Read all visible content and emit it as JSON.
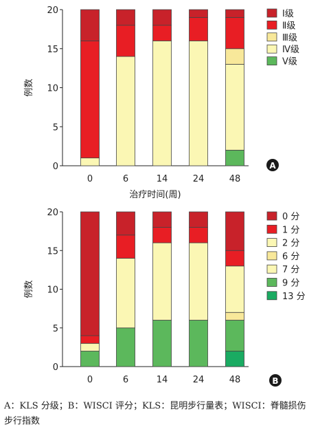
{
  "chart_data": [
    {
      "panel_label": "A",
      "type": "bar",
      "stacked": true,
      "categories": [
        "0",
        "6",
        "14",
        "24",
        "48"
      ],
      "xlabel": "治疗时间(周)",
      "ylabel": "例数",
      "ylim": [
        0,
        20
      ],
      "yticks": [
        "0",
        "5",
        "10",
        "15",
        "20"
      ],
      "grid": false,
      "legend_position": "right",
      "series": [
        {
          "name": "Ⅴ级",
          "color": "#5cb85c",
          "values": [
            0,
            0,
            0,
            0,
            2
          ]
        },
        {
          "name": "Ⅳ级",
          "color": "#fbf7b4",
          "values": [
            1,
            14,
            16,
            16,
            11
          ]
        },
        {
          "name": "Ⅲ级",
          "color": "#f8e89a",
          "values": [
            0,
            0,
            0,
            0,
            2
          ]
        },
        {
          "name": "Ⅱ级",
          "color": "#e81e24",
          "values": [
            15,
            4,
            2,
            3,
            4
          ]
        },
        {
          "name": "Ⅰ级",
          "color": "#c8222a",
          "values": [
            4,
            2,
            2,
            1,
            1
          ]
        }
      ],
      "legend_order": [
        "Ⅰ级",
        "Ⅱ级",
        "Ⅲ级",
        "Ⅳ级",
        "Ⅴ级"
      ]
    },
    {
      "panel_label": "B",
      "type": "bar",
      "stacked": true,
      "categories": [
        "0",
        "6",
        "14",
        "24",
        "48"
      ],
      "xlabel": "",
      "ylabel": "例数",
      "ylim": [
        0,
        20
      ],
      "yticks": [
        "0",
        "5",
        "10",
        "15",
        "20"
      ],
      "grid": false,
      "legend_position": "right",
      "series": [
        {
          "name": "13 分",
          "color": "#1aab62",
          "values": [
            0,
            0,
            0,
            0,
            2
          ]
        },
        {
          "name": "9 分",
          "color": "#5cb85c",
          "values": [
            2,
            5,
            6,
            6,
            4
          ]
        },
        {
          "name": "7 分",
          "color": "#fbf7b4",
          "values": [
            0,
            0,
            0,
            0,
            0
          ]
        },
        {
          "name": "6 分",
          "color": "#f8e89a",
          "values": [
            0,
            0,
            0,
            0,
            1
          ]
        },
        {
          "name": "2 分",
          "color": "#fbf7b4",
          "values": [
            1,
            9,
            10,
            10,
            6
          ]
        },
        {
          "name": "1 分",
          "color": "#e81e24",
          "values": [
            1,
            3,
            2,
            2,
            2
          ]
        },
        {
          "name": "0 分",
          "color": "#c8222a",
          "values": [
            16,
            3,
            2,
            2,
            5
          ]
        }
      ],
      "legend_order": [
        "0 分",
        "1 分",
        "2 分",
        "6 分",
        "7 分",
        "9 分",
        "13 分"
      ]
    }
  ],
  "caption": "A：KLS 分级；B：WISCI 评分；KLS：昆明步行量表；WISCI：脊髓损伤步行指数"
}
